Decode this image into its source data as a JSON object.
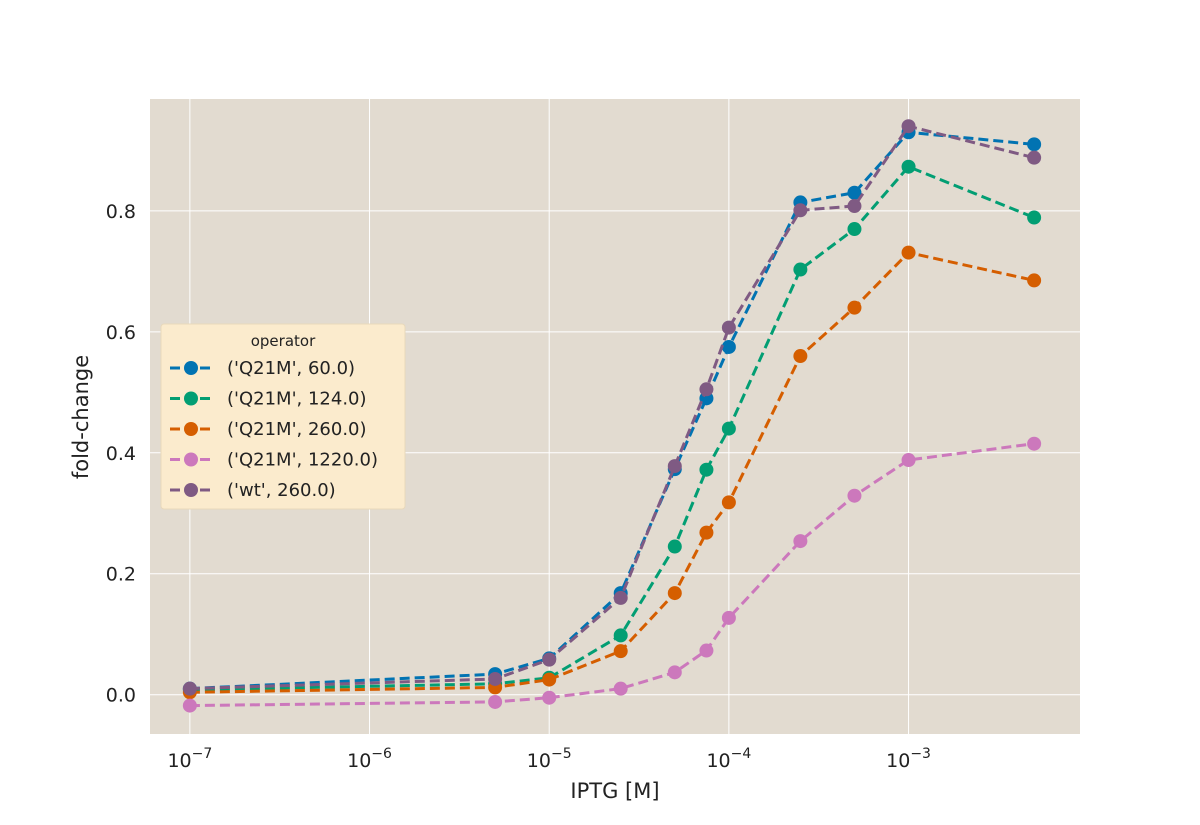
{
  "chart_data": {
    "type": "line",
    "title": "",
    "xlabel": "IPTG [M]",
    "ylabel": "fold-change",
    "xscale": "log",
    "xlim": [
      6e-08,
      0.009
    ],
    "ylim": [
      -0.065,
      0.985
    ],
    "grid": true,
    "legend_title": "operator",
    "legend_placement": "center-left",
    "x": [
      1e-07,
      5e-06,
      1e-05,
      2.5e-05,
      5e-05,
      7.5e-05,
      0.0001,
      0.00025,
      0.0005,
      0.001,
      0.005
    ],
    "x_tick_values": [
      1e-07,
      1e-06,
      1e-05,
      0.0001,
      0.001
    ],
    "x_ticks": [
      {
        "base": "10",
        "exp": "−7"
      },
      {
        "base": "10",
        "exp": "−6"
      },
      {
        "base": "10",
        "exp": "−5"
      },
      {
        "base": "10",
        "exp": "−4"
      },
      {
        "base": "10",
        "exp": "−3"
      }
    ],
    "y_ticks": [
      0.0,
      0.2,
      0.4,
      0.6,
      0.8
    ],
    "y_tick_labels": [
      "0.0",
      "0.2",
      "0.4",
      "0.6",
      "0.8"
    ],
    "series": [
      {
        "name": "('Q21M', 60.0)",
        "color": "#0173b2",
        "values": [
          0.01,
          0.034,
          0.06,
          0.168,
          0.373,
          0.49,
          0.575,
          0.814,
          0.83,
          0.93,
          0.91
        ]
      },
      {
        "name": "('Q21M', 124.0)",
        "color": "#029e73",
        "values": [
          0.008,
          0.018,
          0.028,
          0.098,
          0.245,
          0.372,
          0.44,
          0.703,
          0.77,
          0.873,
          0.789
        ]
      },
      {
        "name": "('Q21M', 260.0)",
        "color": "#d55e00",
        "values": [
          0.004,
          0.012,
          0.025,
          0.072,
          0.168,
          0.268,
          0.318,
          0.56,
          0.64,
          0.731,
          0.685
        ]
      },
      {
        "name": "('Q21M', 1220.0)",
        "color": "#cc78bc",
        "values": [
          -0.018,
          -0.012,
          -0.005,
          0.01,
          0.037,
          0.073,
          0.127,
          0.254,
          0.329,
          0.388,
          0.415
        ]
      },
      {
        "name": "('wt', 260.0)",
        "color": "#7f5a83",
        "values": [
          0.01,
          0.026,
          0.058,
          0.16,
          0.378,
          0.505,
          0.607,
          0.801,
          0.808,
          0.94,
          0.888
        ]
      }
    ]
  }
}
